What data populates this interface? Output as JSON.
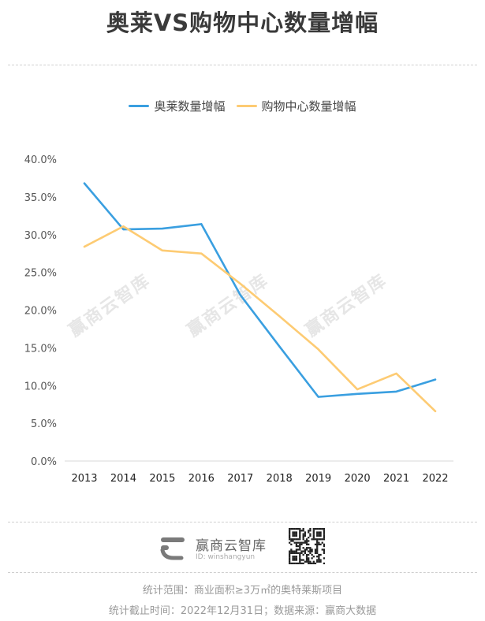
{
  "title": "奥莱VS购物中心数量增幅",
  "chart_data": {
    "type": "line",
    "x": [
      "2013",
      "2014",
      "2015",
      "2016",
      "2017",
      "2018",
      "2019",
      "2020",
      "2021",
      "2022"
    ],
    "series": [
      {
        "name": "奥莱数量增幅",
        "color": "#3a9fe0",
        "values": [
          36.8,
          30.7,
          30.8,
          31.4,
          22.0,
          15.2,
          8.5,
          8.9,
          9.2,
          10.8
        ]
      },
      {
        "name": "购物中心数量增幅",
        "color": "#fdcb73",
        "values": [
          28.4,
          31.1,
          27.9,
          27.5,
          23.5,
          19.2,
          14.8,
          9.5,
          11.6,
          6.6
        ]
      }
    ],
    "ylim": [
      0,
      40
    ],
    "yticks": [
      "0.0%",
      "5.0%",
      "10.0%",
      "15.0%",
      "20.0%",
      "25.0%",
      "30.0%",
      "35.0%",
      "40.0%"
    ],
    "legend_position": "top-center",
    "grid": false
  },
  "watermark": "赢商云智库",
  "brand": {
    "name": "赢商云智库",
    "id": "ID: winshangyun"
  },
  "footer": {
    "line1": "统计范围：商业面积≥3万㎡的奥特莱斯项目",
    "line2": "统计截止时间：2022年12月31日；数据来源：赢商大数据"
  }
}
